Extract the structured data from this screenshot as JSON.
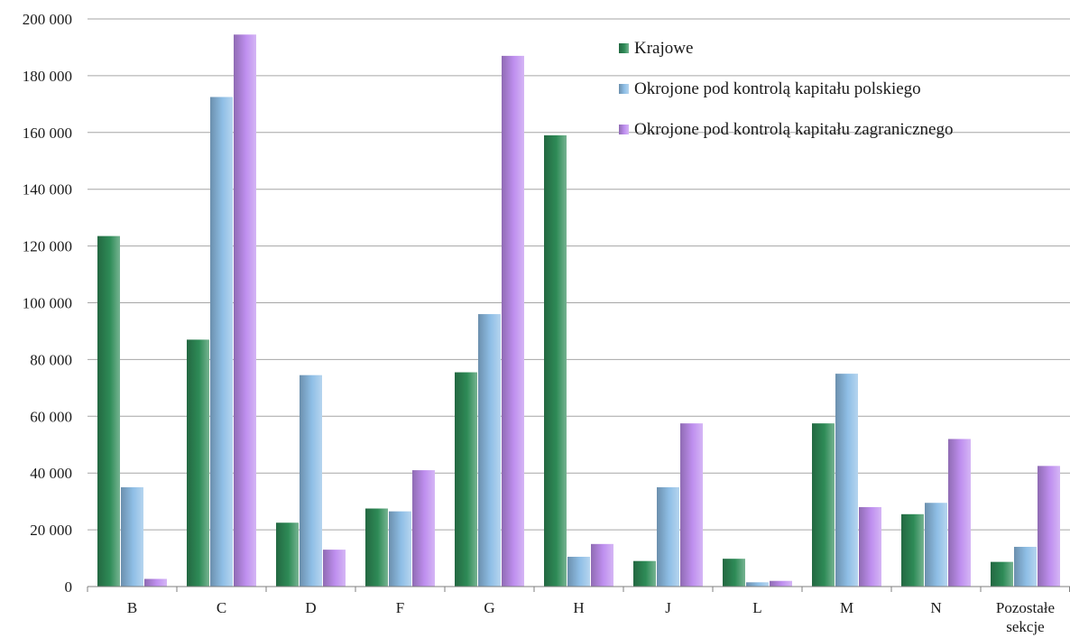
{
  "chart_data": {
    "type": "bar",
    "title": "",
    "xlabel": "",
    "ylabel": "",
    "categories": [
      "B",
      "C",
      "D",
      "F",
      "G",
      "H",
      "J",
      "L",
      "M",
      "N",
      [
        "Pozostałe",
        "sekcje"
      ]
    ],
    "ylim": [
      0,
      200000
    ],
    "yticks": [
      0,
      20000,
      40000,
      60000,
      80000,
      100000,
      120000,
      140000,
      160000,
      180000,
      200000
    ],
    "ytick_labels": [
      "0",
      "20 000",
      "40 000",
      "60 000",
      "80 000",
      "100 000",
      "120 000",
      "140 000",
      "160 000",
      "180 000",
      "200 000"
    ],
    "grid": true,
    "legend_position": "top-right",
    "series": [
      {
        "name": "Krajowe",
        "color": "#2e8b57",
        "values": [
          123500,
          87000,
          22500,
          27500,
          75500,
          159000,
          9000,
          9800,
          57500,
          25500,
          8700
        ]
      },
      {
        "name": "Okrojone pod kontrolą kapitału polskiego",
        "color": "#8fbfe6",
        "values": [
          35000,
          172500,
          74500,
          26500,
          96000,
          10500,
          35000,
          1500,
          75000,
          29500,
          14000
        ]
      },
      {
        "name": "Okrojone pod kontrolą kapitału zagranicznego",
        "color": "#bf8fef",
        "values": [
          2700,
          194500,
          13000,
          41000,
          187000,
          15000,
          57500,
          2000,
          28000,
          52000,
          42500
        ]
      }
    ]
  }
}
